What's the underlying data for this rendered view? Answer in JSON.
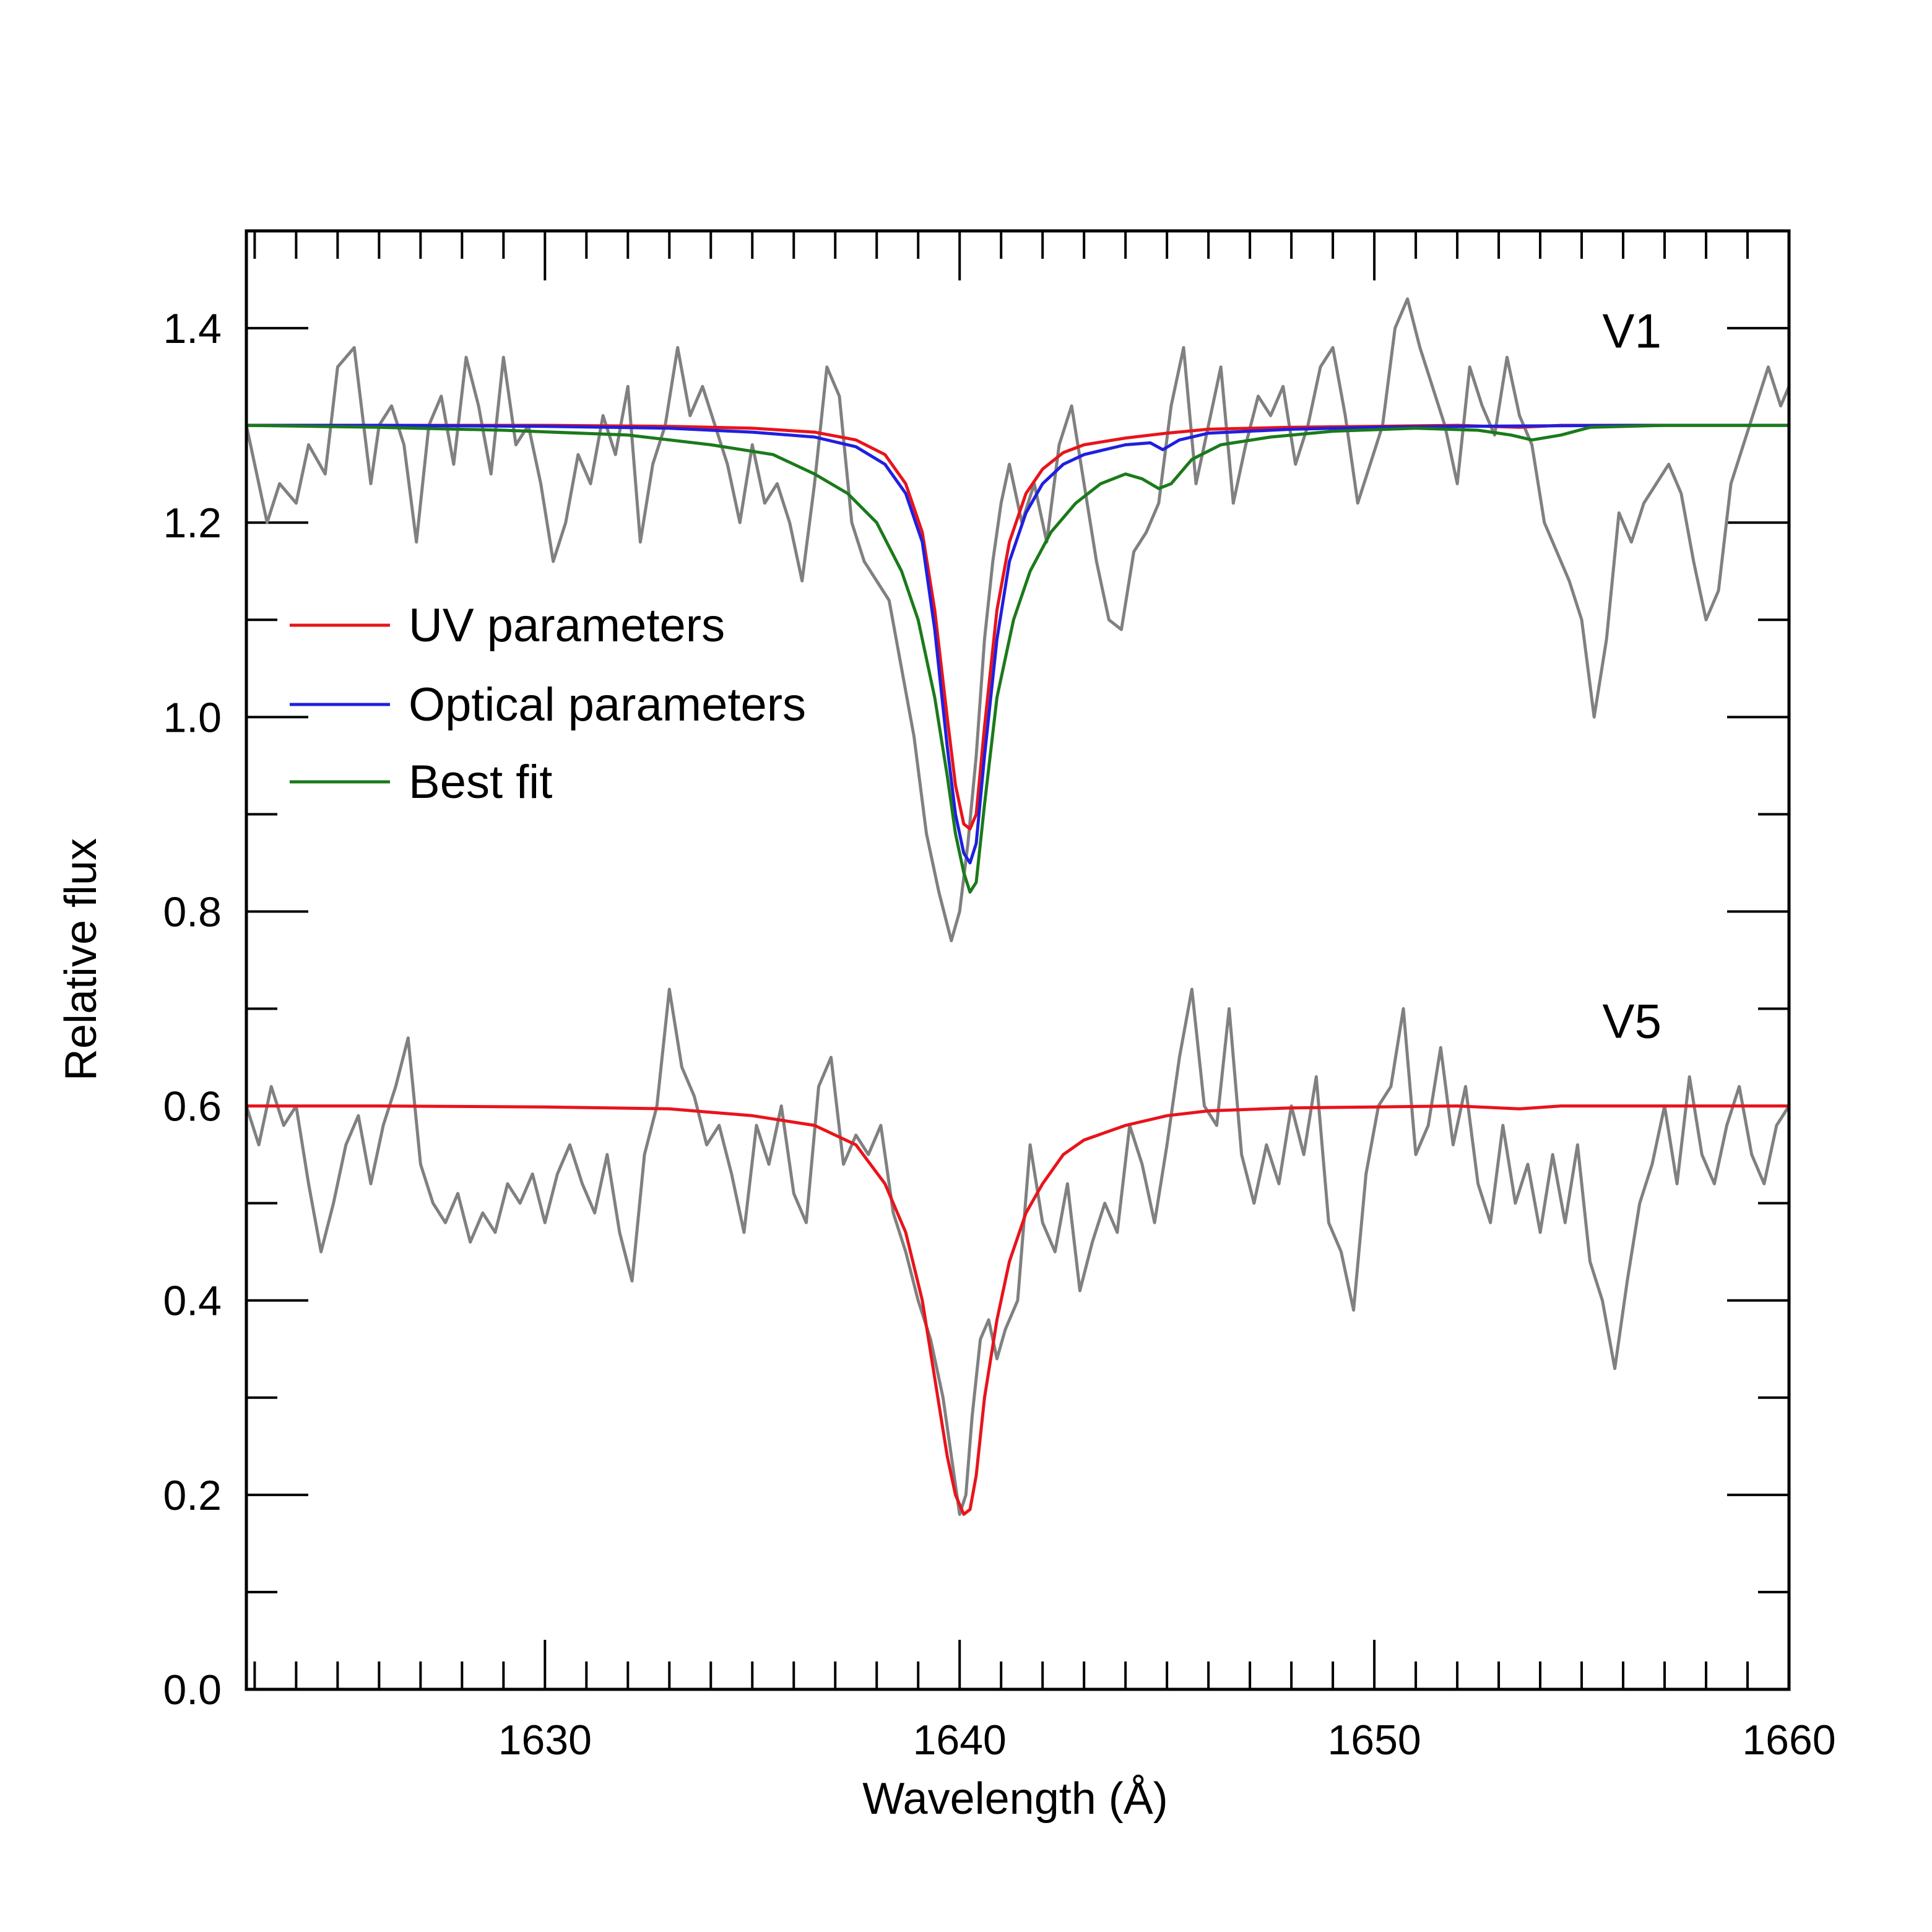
{
  "chart_data": {
    "type": "line",
    "xlabel": "Wavelength (Å)",
    "ylabel": "Relative flux",
    "xlim": [
      1622.8,
      1660
    ],
    "ylim": [
      0.0,
      1.5
    ],
    "x_ticks": [
      1630,
      1640,
      1650,
      1660
    ],
    "x_tick_labels": [
      "1630",
      "1640",
      "1650",
      "1660"
    ],
    "y_ticks": [
      0.0,
      0.2,
      0.4,
      0.6,
      0.8,
      1.0,
      1.2,
      1.4
    ],
    "y_tick_labels": [
      "0.0",
      "0.2",
      "0.4",
      "0.6",
      "0.8",
      "1.0",
      "1.2",
      "1.4"
    ],
    "legend": {
      "placement": "left-middle",
      "entries": [
        {
          "label": "UV parameters",
          "color": "#e8141b"
        },
        {
          "label": "Optical parameters",
          "color": "#1f1fe0"
        },
        {
          "label": "Best fit",
          "color": "#1a7a1a"
        }
      ]
    },
    "annotations": [
      {
        "text": "V1",
        "x": 1655.5,
        "y": 1.38
      },
      {
        "text": "V5",
        "x": 1655.5,
        "y": 0.67
      }
    ],
    "series": [
      {
        "name": "V1 observed",
        "color": "#808080",
        "x": [
          1622.8,
          1623.0,
          1623.3,
          1623.6,
          1624.0,
          1624.3,
          1624.7,
          1625.0,
          1625.4,
          1625.8,
          1626.0,
          1626.3,
          1626.6,
          1626.9,
          1627.2,
          1627.5,
          1627.8,
          1628.1,
          1628.4,
          1628.7,
          1629.0,
          1629.3,
          1629.6,
          1629.9,
          1630.2,
          1630.5,
          1630.8,
          1631.1,
          1631.4,
          1631.7,
          1632.0,
          1632.3,
          1632.6,
          1632.9,
          1633.2,
          1633.5,
          1633.8,
          1634.1,
          1634.4,
          1634.7,
          1635.0,
          1635.3,
          1635.6,
          1635.9,
          1636.2,
          1636.5,
          1636.8,
          1637.1,
          1637.4,
          1637.7,
          1638.0,
          1638.3,
          1638.6,
          1638.9,
          1639.2,
          1639.5,
          1639.8,
          1640.0,
          1640.2,
          1640.4,
          1640.6,
          1640.8,
          1641.0,
          1641.2,
          1641.5,
          1641.8,
          1642.1,
          1642.4,
          1642.7,
          1643.0,
          1643.3,
          1643.6,
          1643.9,
          1644.2,
          1644.5,
          1644.8,
          1645.1,
          1645.4,
          1645.7,
          1646.0,
          1646.3,
          1646.6,
          1646.9,
          1647.2,
          1647.5,
          1647.8,
          1648.1,
          1648.4,
          1648.7,
          1649.0,
          1649.3,
          1649.6,
          1649.9,
          1650.2,
          1650.5,
          1650.8,
          1651.1,
          1651.4,
          1651.7,
          1652.0,
          1652.3,
          1652.6,
          1652.9,
          1653.2,
          1653.5,
          1653.8,
          1654.1,
          1654.4,
          1654.7,
          1655.0,
          1655.3,
          1655.6,
          1655.9,
          1656.2,
          1656.5,
          1656.8,
          1657.1,
          1657.4,
          1657.7,
          1658.0,
          1658.3,
          1658.6,
          1658.9,
          1659.2,
          1659.5,
          1659.8,
          1660.0
        ],
        "values": [
          1.3,
          1.26,
          1.2,
          1.24,
          1.22,
          1.28,
          1.25,
          1.36,
          1.38,
          1.24,
          1.3,
          1.32,
          1.28,
          1.18,
          1.3,
          1.33,
          1.26,
          1.37,
          1.32,
          1.25,
          1.37,
          1.28,
          1.3,
          1.24,
          1.16,
          1.2,
          1.27,
          1.24,
          1.31,
          1.27,
          1.34,
          1.18,
          1.26,
          1.3,
          1.38,
          1.31,
          1.34,
          1.3,
          1.26,
          1.2,
          1.28,
          1.22,
          1.24,
          1.2,
          1.14,
          1.24,
          1.36,
          1.33,
          1.2,
          1.16,
          1.14,
          1.12,
          1.05,
          0.98,
          0.88,
          0.82,
          0.77,
          0.8,
          0.87,
          0.96,
          1.08,
          1.16,
          1.22,
          1.26,
          1.2,
          1.24,
          1.18,
          1.28,
          1.32,
          1.24,
          1.16,
          1.1,
          1.09,
          1.17,
          1.19,
          1.22,
          1.32,
          1.38,
          1.24,
          1.3,
          1.36,
          1.22,
          1.28,
          1.33,
          1.31,
          1.34,
          1.26,
          1.3,
          1.36,
          1.38,
          1.31,
          1.22,
          1.26,
          1.3,
          1.4,
          1.43,
          1.38,
          1.34,
          1.3,
          1.24,
          1.36,
          1.32,
          1.29,
          1.37,
          1.31,
          1.28,
          1.2,
          1.17,
          1.14,
          1.1,
          1.0,
          1.08,
          1.21,
          1.18,
          1.22,
          1.24,
          1.26,
          1.23,
          1.16,
          1.1,
          1.13,
          1.24,
          1.28,
          1.32,
          1.36,
          1.32,
          1.34
        ]
      },
      {
        "name": "V1 UV parameters",
        "color": "#e8141b",
        "x": [
          1622.8,
          1626.0,
          1630.0,
          1633.0,
          1635.0,
          1636.5,
          1637.5,
          1638.2,
          1638.7,
          1639.1,
          1639.4,
          1639.7,
          1639.9,
          1640.1,
          1640.25,
          1640.4,
          1640.6,
          1640.9,
          1641.2,
          1641.6,
          1642.0,
          1642.5,
          1643.0,
          1644.0,
          1645.0,
          1646.0,
          1648.0,
          1650.0,
          1652.0,
          1653.5,
          1654.5,
          1656.0,
          1660.0
        ],
        "values": [
          1.3,
          1.3,
          1.3,
          1.299,
          1.297,
          1.293,
          1.285,
          1.27,
          1.24,
          1.19,
          1.11,
          1.0,
          0.93,
          0.89,
          0.885,
          0.9,
          0.99,
          1.11,
          1.18,
          1.23,
          1.255,
          1.272,
          1.28,
          1.287,
          1.292,
          1.296,
          1.298,
          1.299,
          1.3,
          1.298,
          1.3,
          1.3,
          1.3
        ]
      },
      {
        "name": "V1 Optical parameters",
        "color": "#1f1fe0",
        "x": [
          1622.8,
          1626.0,
          1630.0,
          1633.0,
          1635.0,
          1636.5,
          1637.5,
          1638.2,
          1638.7,
          1639.1,
          1639.4,
          1639.7,
          1639.9,
          1640.1,
          1640.25,
          1640.4,
          1640.6,
          1640.9,
          1641.2,
          1641.6,
          1642.0,
          1642.5,
          1643.0,
          1644.0,
          1644.6,
          1644.9,
          1645.3,
          1646.0,
          1648.0,
          1650.0,
          1652.0,
          1656.0,
          1660.0
        ],
        "values": [
          1.3,
          1.3,
          1.299,
          1.297,
          1.293,
          1.288,
          1.278,
          1.26,
          1.23,
          1.18,
          1.09,
          0.97,
          0.9,
          0.86,
          0.85,
          0.87,
          0.96,
          1.08,
          1.16,
          1.21,
          1.24,
          1.26,
          1.27,
          1.28,
          1.282,
          1.275,
          1.285,
          1.292,
          1.296,
          1.298,
          1.299,
          1.3,
          1.3
        ]
      },
      {
        "name": "V1 Best fit",
        "color": "#1a7a1a",
        "x": [
          1622.8,
          1626.0,
          1629.0,
          1632.0,
          1634.0,
          1635.5,
          1636.5,
          1637.3,
          1638.0,
          1638.6,
          1639.0,
          1639.4,
          1639.7,
          1639.9,
          1640.1,
          1640.25,
          1640.4,
          1640.6,
          1640.9,
          1641.3,
          1641.7,
          1642.2,
          1642.8,
          1643.4,
          1644.0,
          1644.4,
          1644.8,
          1645.1,
          1645.6,
          1646.3,
          1647.5,
          1649.0,
          1651.0,
          1652.5,
          1653.3,
          1653.8,
          1654.5,
          1655.2,
          1657.0,
          1660.0
        ],
        "values": [
          1.3,
          1.298,
          1.295,
          1.29,
          1.28,
          1.27,
          1.25,
          1.23,
          1.2,
          1.15,
          1.1,
          1.02,
          0.94,
          0.88,
          0.84,
          0.82,
          0.83,
          0.91,
          1.02,
          1.1,
          1.15,
          1.19,
          1.22,
          1.24,
          1.25,
          1.245,
          1.235,
          1.24,
          1.265,
          1.28,
          1.288,
          1.294,
          1.297,
          1.295,
          1.29,
          1.285,
          1.29,
          1.298,
          1.3,
          1.3
        ]
      },
      {
        "name": "V5 observed",
        "color": "#808080",
        "x": [
          1622.8,
          1623.1,
          1623.4,
          1623.7,
          1624.0,
          1624.3,
          1624.6,
          1624.9,
          1625.2,
          1625.5,
          1625.8,
          1626.1,
          1626.4,
          1626.7,
          1627.0,
          1627.3,
          1627.6,
          1627.9,
          1628.2,
          1628.5,
          1628.8,
          1629.1,
          1629.4,
          1629.7,
          1630.0,
          1630.3,
          1630.6,
          1630.9,
          1631.2,
          1631.5,
          1631.8,
          1632.1,
          1632.4,
          1632.7,
          1633.0,
          1633.3,
          1633.6,
          1633.9,
          1634.2,
          1634.5,
          1634.8,
          1635.1,
          1635.4,
          1635.7,
          1636.0,
          1636.3,
          1636.6,
          1636.9,
          1637.2,
          1637.5,
          1637.8,
          1638.1,
          1638.4,
          1638.7,
          1639.0,
          1639.3,
          1639.6,
          1639.8,
          1640.0,
          1640.15,
          1640.3,
          1640.5,
          1640.7,
          1640.9,
          1641.1,
          1641.4,
          1641.7,
          1642.0,
          1642.3,
          1642.6,
          1642.9,
          1643.2,
          1643.5,
          1643.8,
          1644.1,
          1644.4,
          1644.7,
          1645.0,
          1645.3,
          1645.6,
          1645.9,
          1646.2,
          1646.5,
          1646.8,
          1647.1,
          1647.4,
          1647.7,
          1648.0,
          1648.3,
          1648.6,
          1648.9,
          1649.2,
          1649.5,
          1649.8,
          1650.1,
          1650.4,
          1650.7,
          1651.0,
          1651.3,
          1651.6,
          1651.9,
          1652.2,
          1652.5,
          1652.8,
          1653.1,
          1653.4,
          1653.7,
          1654.0,
          1654.3,
          1654.6,
          1654.9,
          1655.2,
          1655.5,
          1655.8,
          1656.1,
          1656.4,
          1656.7,
          1657.0,
          1657.3,
          1657.6,
          1657.9,
          1658.2,
          1658.5,
          1658.8,
          1659.1,
          1659.4,
          1659.7,
          1660.0
        ],
        "values": [
          0.6,
          0.56,
          0.62,
          0.58,
          0.6,
          0.52,
          0.45,
          0.5,
          0.56,
          0.59,
          0.52,
          0.58,
          0.62,
          0.67,
          0.54,
          0.5,
          0.48,
          0.51,
          0.46,
          0.49,
          0.47,
          0.52,
          0.5,
          0.53,
          0.48,
          0.53,
          0.56,
          0.52,
          0.49,
          0.55,
          0.47,
          0.42,
          0.55,
          0.6,
          0.72,
          0.64,
          0.61,
          0.56,
          0.58,
          0.53,
          0.47,
          0.58,
          0.54,
          0.6,
          0.51,
          0.48,
          0.62,
          0.65,
          0.54,
          0.57,
          0.55,
          0.58,
          0.49,
          0.45,
          0.4,
          0.36,
          0.3,
          0.24,
          0.18,
          0.2,
          0.28,
          0.36,
          0.38,
          0.34,
          0.37,
          0.4,
          0.56,
          0.48,
          0.45,
          0.52,
          0.41,
          0.46,
          0.5,
          0.47,
          0.58,
          0.54,
          0.48,
          0.56,
          0.65,
          0.72,
          0.6,
          0.58,
          0.7,
          0.55,
          0.5,
          0.56,
          0.52,
          0.6,
          0.55,
          0.63,
          0.48,
          0.45,
          0.39,
          0.53,
          0.6,
          0.62,
          0.7,
          0.55,
          0.58,
          0.66,
          0.56,
          0.62,
          0.52,
          0.48,
          0.58,
          0.5,
          0.54,
          0.47,
          0.55,
          0.48,
          0.56,
          0.44,
          0.4,
          0.33,
          0.42,
          0.5,
          0.54,
          0.6,
          0.52,
          0.63,
          0.55,
          0.52,
          0.58,
          0.62,
          0.55,
          0.52,
          0.58,
          0.6
        ]
      },
      {
        "name": "V5 UV parameters",
        "color": "#e8141b",
        "x": [
          1622.8,
          1626.0,
          1630.0,
          1633.0,
          1635.0,
          1636.5,
          1637.5,
          1638.2,
          1638.7,
          1639.1,
          1639.4,
          1639.7,
          1639.9,
          1640.1,
          1640.25,
          1640.4,
          1640.6,
          1640.9,
          1641.2,
          1641.6,
          1642.0,
          1642.5,
          1643.0,
          1644.0,
          1645.0,
          1646.0,
          1648.0,
          1650.0,
          1652.0,
          1653.5,
          1654.5,
          1656.0,
          1660.0
        ],
        "values": [
          0.6,
          0.6,
          0.599,
          0.597,
          0.59,
          0.58,
          0.56,
          0.52,
          0.47,
          0.4,
          0.32,
          0.24,
          0.2,
          0.18,
          0.185,
          0.22,
          0.3,
          0.38,
          0.44,
          0.49,
          0.52,
          0.55,
          0.565,
          0.58,
          0.59,
          0.595,
          0.598,
          0.599,
          0.6,
          0.597,
          0.6,
          0.6,
          0.6
        ]
      }
    ]
  }
}
